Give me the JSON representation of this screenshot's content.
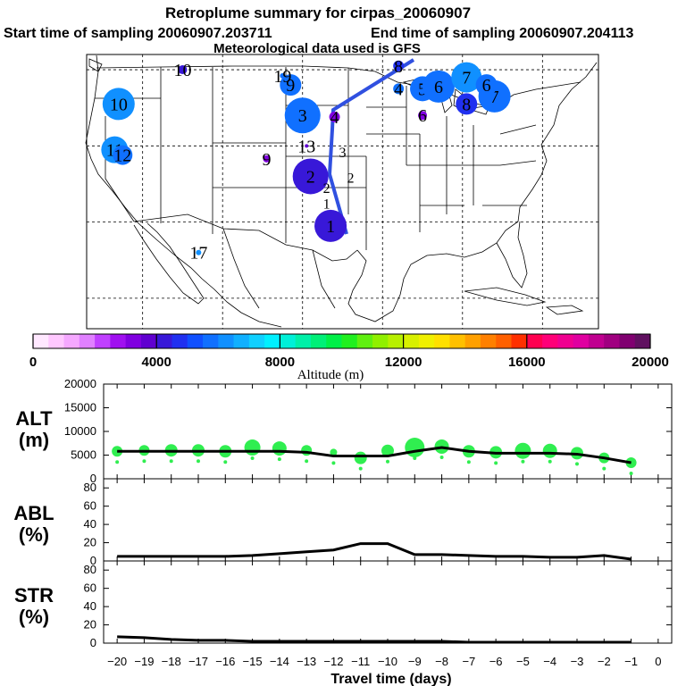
{
  "title": "Retroplume summary for cirpas_20060907",
  "subtitle_start": "Start time of sampling 20060907.203711",
  "subtitle_end": "End time of sampling 20060907.204113",
  "met_note": "Meteorological data used is GFS",
  "colorbar": {
    "label": "Altitude (m)",
    "ticks": [
      "0",
      "4000",
      "8000",
      "12000",
      "16000",
      "20000"
    ],
    "range": [
      0,
      20000
    ],
    "colors": [
      "#ffe8ff",
      "#ffc8ff",
      "#f5a8ff",
      "#e080ff",
      "#c040ff",
      "#a010f0",
      "#8000e0",
      "#6000d0",
      "#3818d8",
      "#2030f0",
      "#1050ff",
      "#1070ff",
      "#1090ff",
      "#10b0ff",
      "#10d0ff",
      "#00f0ff",
      "#00f0d8",
      "#00f0a8",
      "#00f078",
      "#00f048",
      "#20f020",
      "#60f010",
      "#90f000",
      "#b8f000",
      "#d8f000",
      "#f0f000",
      "#ffe000",
      "#ffc000",
      "#ffa000",
      "#ff8000",
      "#ff6000",
      "#ff3000",
      "#ff0050",
      "#ff0078",
      "#f00090",
      "#e000a0",
      "#c00090",
      "#a00080",
      "#800070",
      "#601060"
    ]
  },
  "map_markers": [
    {
      "label": "1",
      "lon": -96.5,
      "lat": 29.5,
      "alt": 4200,
      "size": 18
    },
    {
      "label": "2",
      "lon": -99.0,
      "lat": 36.0,
      "alt": 4000,
      "size": 20
    },
    {
      "label": "3",
      "lon": -100.0,
      "lat": 44.0,
      "alt": 5600,
      "size": 20
    },
    {
      "label": "4",
      "lon": -88.0,
      "lat": 47.5,
      "alt": 5600,
      "size": 6
    },
    {
      "label": "5",
      "lon": -85.0,
      "lat": 47.5,
      "alt": 5800,
      "size": 14
    },
    {
      "label": "6",
      "lon": -83.0,
      "lat": 47.8,
      "alt": 5800,
      "size": 18
    },
    {
      "label": "7",
      "lon": -76.0,
      "lat": 46.5,
      "alt": 5800,
      "size": 18
    },
    {
      "label": "8",
      "lon": -79.5,
      "lat": 45.5,
      "alt": 4600,
      "size": 12
    },
    {
      "label": "9",
      "lon": -101.5,
      "lat": 48.0,
      "alt": 5800,
      "size": 12
    },
    {
      "label": "10",
      "lon": -123.0,
      "lat": 45.5,
      "alt": 6200,
      "size": 18
    },
    {
      "label": "11",
      "lon": -123.5,
      "lat": 39.5,
      "alt": 6000,
      "size": 15
    },
    {
      "label": "12",
      "lon": -122.5,
      "lat": 38.8,
      "alt": 5800,
      "size": 11
    },
    {
      "label": "13",
      "lon": -99.5,
      "lat": 40.0,
      "alt": 3800,
      "size": 2
    },
    {
      "label": "7",
      "lon": -79.5,
      "lat": 49.0,
      "alt": 6000,
      "size": 17
    },
    {
      "label": "6",
      "lon": -77.0,
      "lat": 48.0,
      "alt": 5800,
      "size": 12
    },
    {
      "label": "8",
      "lon": -88.0,
      "lat": 50.5,
      "alt": 4800,
      "size": 6
    },
    {
      "label": "4",
      "lon": -96.0,
      "lat": 43.8,
      "alt": 3200,
      "size": 6
    },
    {
      "label": "6",
      "lon": -85.0,
      "lat": 44.0,
      "alt": 3000,
      "size": 5
    },
    {
      "label": "9",
      "lon": -104.5,
      "lat": 38.3,
      "alt": 3200,
      "size": 4
    },
    {
      "label": "10",
      "lon": -115.0,
      "lat": 50.0,
      "alt": 4400,
      "size": 5
    },
    {
      "label": "19",
      "lon": -102.5,
      "lat": 49.2,
      "alt": 5800,
      "size": 3
    },
    {
      "label": "17",
      "lon": -113.0,
      "lat": 26.0,
      "alt": 6200,
      "size": 3
    }
  ],
  "map_text_labels": [
    {
      "label": "3",
      "lon": -95.0,
      "lat": 38.5
    },
    {
      "label": "2",
      "lon": -94.0,
      "lat": 35.2
    },
    {
      "label": "1",
      "lon": -97.0,
      "lat": 31.8
    },
    {
      "label": "2",
      "lon": -97.0,
      "lat": 33.8
    }
  ],
  "chart_data": [
    {
      "type": "scatter",
      "panel_label": "ALT",
      "unit_label": "(m)",
      "x": [
        -20,
        -19,
        -18,
        -17,
        -16,
        -15,
        -14,
        -13,
        -12,
        -11,
        -10,
        -9,
        -8,
        -7,
        -6,
        -5,
        -4,
        -3,
        -2,
        -1
      ],
      "series": [
        {
          "name": "median",
          "values": [
            5800,
            5800,
            5800,
            5800,
            5800,
            5800,
            5800,
            5600,
            4800,
            4800,
            4800,
            5800,
            6600,
            5800,
            5400,
            5400,
            5400,
            5200,
            4400,
            3400
          ]
        },
        {
          "name": "plume",
          "values": [
            5800,
            6000,
            6000,
            6000,
            5800,
            6600,
            6400,
            6000,
            5600,
            4400,
            5900,
            6600,
            6800,
            5800,
            5600,
            5900,
            5900,
            5400,
            4400,
            3400
          ]
        }
      ],
      "sizes": [
        6,
        6,
        7,
        7,
        7,
        9,
        8,
        6,
        4,
        7,
        7,
        11,
        8,
        7,
        7,
        9,
        8,
        7,
        6,
        6
      ],
      "ylim": [
        0,
        20000
      ],
      "yticks": [
        "0",
        "5000",
        "10000",
        "15000",
        "20000"
      ]
    },
    {
      "type": "line",
      "panel_label": "ABL",
      "unit_label": "(%)",
      "x": [
        -20,
        -19,
        -18,
        -17,
        -16,
        -15,
        -14,
        -13,
        -12,
        -11,
        -10,
        -9,
        -8,
        -7,
        -6,
        -5,
        -4,
        -3,
        -2,
        -1
      ],
      "values": [
        5,
        5,
        5,
        5,
        5,
        6,
        8,
        10,
        12,
        19,
        19,
        7,
        7,
        6,
        5,
        5,
        4,
        4,
        6,
        2
      ],
      "ylim": [
        0,
        90
      ],
      "yticks": [
        "0",
        "20",
        "40",
        "60",
        "80"
      ]
    },
    {
      "type": "line",
      "panel_label": "STR",
      "unit_label": "(%)",
      "x": [
        -20,
        -19,
        -18,
        -17,
        -16,
        -15,
        -14,
        -13,
        -12,
        -11,
        -10,
        -9,
        -8,
        -7,
        -6,
        -5,
        -4,
        -3,
        -2,
        -1
      ],
      "values": [
        7,
        6,
        4,
        3,
        3,
        2,
        2,
        2,
        2,
        2,
        2,
        2,
        2,
        1,
        1,
        1,
        1,
        1,
        1,
        1
      ],
      "ylim": [
        0,
        90
      ],
      "yticks": [
        "0",
        "20",
        "40",
        "60",
        "80"
      ]
    }
  ],
  "x_axis": {
    "label": "Travel time (days)",
    "ticks": [
      "−20",
      "−19",
      "−18",
      "−17",
      "−16",
      "−15",
      "−14",
      "−13",
      "−12",
      "−11",
      "−10",
      "−9",
      "−8",
      "−7",
      "−6",
      "−5",
      "−4",
      "−3",
      "−2",
      "−1",
      "0"
    ],
    "range": [
      -20.5,
      0.5
    ]
  }
}
